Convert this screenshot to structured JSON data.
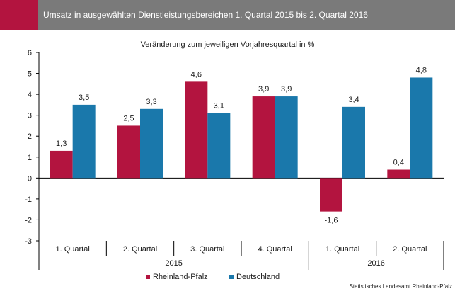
{
  "header": {
    "title": "Umsatz in ausgewählten Dienstleistungsbereichen 1. Quartal 2015 bis 2. Quartal 2016",
    "accent_color": "#b3143f",
    "band_color": "#7a7a7a"
  },
  "source_note": "Statistisches Landesamt Rheinland-Pfalz",
  "chart_data": {
    "type": "bar",
    "subtitle": "Veränderung zum jeweiligen Vorjahresquartal  in %",
    "categories": [
      "1. Quartal",
      "2. Quartal",
      "3. Quartal",
      "4. Quartal",
      "1. Quartal",
      "2. Quartal"
    ],
    "year_groups": [
      {
        "label": "2015",
        "span": [
          0,
          3
        ]
      },
      {
        "label": "2016",
        "span": [
          4,
          5
        ]
      }
    ],
    "series": [
      {
        "name": "Rheinland-Pfalz",
        "color": "#b3143f",
        "values": [
          1.3,
          2.5,
          4.6,
          3.9,
          -1.6,
          0.4
        ],
        "labels": [
          "1,3",
          "2,5",
          "4,6",
          "3,9",
          "-1,6",
          "0,4"
        ]
      },
      {
        "name": "Deutschland",
        "color": "#1a78ab",
        "values": [
          3.5,
          3.3,
          3.1,
          3.9,
          3.4,
          4.8
        ],
        "labels": [
          "3,5",
          "3,3",
          "3,1",
          "3,9",
          "3,4",
          "4,8"
        ]
      }
    ],
    "ylim": [
      -3,
      6
    ],
    "yticks": [
      -3,
      -2,
      -1,
      0,
      1,
      2,
      3,
      4,
      5,
      6
    ],
    "grid": false,
    "legend_position": "bottom"
  }
}
